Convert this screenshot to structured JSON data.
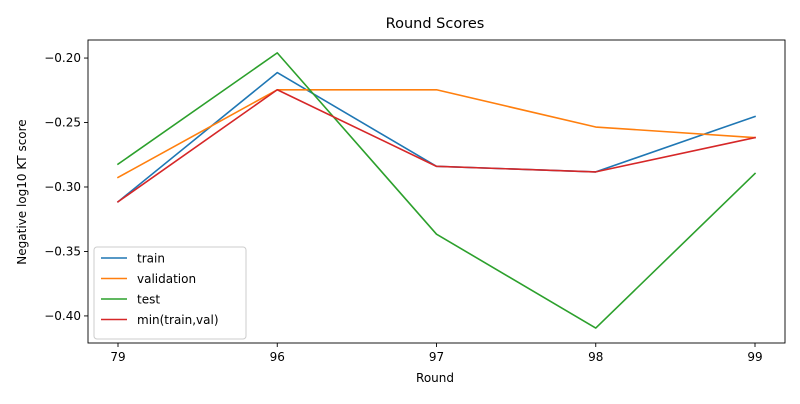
{
  "chart_data": {
    "type": "line",
    "title": "Round Scores",
    "xlabel": "Round",
    "ylabel": "Negative log10 KT score",
    "categories": [
      "79",
      "96",
      "97",
      "98",
      "99"
    ],
    "ylim": [
      -0.421,
      -0.186
    ],
    "yticks": [
      -0.2,
      -0.25,
      -0.3,
      -0.35,
      -0.4
    ],
    "ytick_labels": [
      "−0.20",
      "−0.25",
      "−0.30",
      "−0.35",
      "−0.40"
    ],
    "grid": false,
    "legend_position": "lower-left",
    "series": [
      {
        "name": "train",
        "color": "#1f77b4",
        "values": [
          -0.3115,
          -0.2113,
          -0.284,
          -0.2883,
          -0.2453
        ]
      },
      {
        "name": "validation",
        "color": "#ff7f0e",
        "values": [
          -0.2926,
          -0.2246,
          -0.2246,
          -0.2535,
          -0.2617
        ]
      },
      {
        "name": "test",
        "color": "#2ca02c",
        "values": [
          -0.2823,
          -0.196,
          -0.3366,
          -0.4094,
          -0.2895
        ]
      },
      {
        "name": "min(train,val)",
        "color": "#d62728",
        "values": [
          -0.3115,
          -0.2246,
          -0.284,
          -0.2883,
          -0.2617
        ]
      }
    ]
  }
}
